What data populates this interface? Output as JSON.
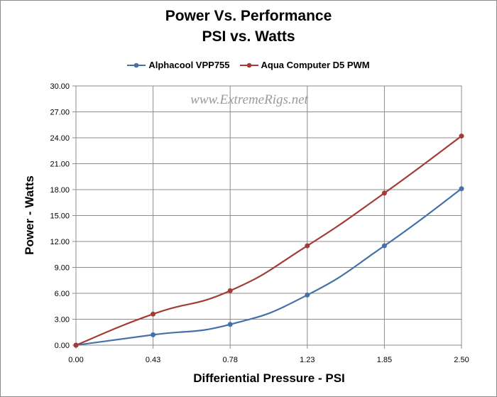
{
  "chart_data": {
    "type": "line",
    "title": "Power Vs. Performance",
    "subtitle": "PSI vs. Watts",
    "xlabel": "Differiential Pressure - PSI",
    "ylabel": "Power - Watts",
    "watermark": "www.ExtremeRigs.net",
    "categories": [
      "0.00",
      "0.43",
      "0.78",
      "1.23",
      "1.85",
      "2.50"
    ],
    "yticks": [
      "0.00",
      "3.00",
      "6.00",
      "9.00",
      "12.00",
      "15.00",
      "18.00",
      "21.00",
      "24.00",
      "27.00",
      "30.00"
    ],
    "ylim": [
      0,
      30
    ],
    "legend_position": "top",
    "series": [
      {
        "name": "Alphacool VPP755",
        "color": "#4472a8",
        "values": [
          0,
          1.2,
          2.4,
          5.8,
          11.5,
          18.1
        ]
      },
      {
        "name": "Aqua Computer D5 PWM",
        "color": "#a33b38",
        "values": [
          0,
          3.6,
          6.3,
          11.5,
          17.6,
          24.2
        ]
      }
    ]
  }
}
